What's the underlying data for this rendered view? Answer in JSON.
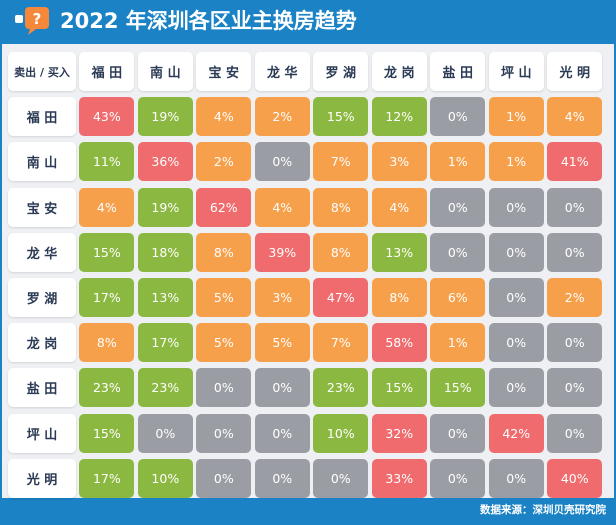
{
  "title": "2022 年深圳各区业主换房趋势",
  "logo_icon": "question-bubble-icon",
  "source": "数据来源：深圳贝壳研究院",
  "colors": {
    "background": "#1a82c5",
    "high": "#f06b6d",
    "mid": "#8bb840",
    "low": "#f7a04b",
    "zero": "#9a9ea4"
  },
  "chart_data": {
    "type": "heatmap",
    "corner_label": "卖出 / 买入",
    "columns": [
      "福 田",
      "南 山",
      "宝 安",
      "龙 华",
      "罗 湖",
      "龙 岗",
      "盐 田",
      "坪 山",
      "光 明"
    ],
    "rows": [
      {
        "label": "福 田",
        "values": [
          "43%",
          "19%",
          "4%",
          "2%",
          "15%",
          "12%",
          "0%",
          "1%",
          "4%"
        ]
      },
      {
        "label": "南 山",
        "values": [
          "11%",
          "36%",
          "2%",
          "0%",
          "7%",
          "3%",
          "1%",
          "1%",
          "41%"
        ]
      },
      {
        "label": "宝 安",
        "values": [
          "4%",
          "19%",
          "62%",
          "4%",
          "8%",
          "4%",
          "0%",
          "0%",
          "0%"
        ]
      },
      {
        "label": "龙 华",
        "values": [
          "15%",
          "18%",
          "8%",
          "39%",
          "8%",
          "13%",
          "0%",
          "0%",
          "0%"
        ]
      },
      {
        "label": "罗 湖",
        "values": [
          "17%",
          "13%",
          "5%",
          "3%",
          "47%",
          "8%",
          "6%",
          "0%",
          "2%"
        ]
      },
      {
        "label": "龙 岗",
        "values": [
          "8%",
          "17%",
          "5%",
          "5%",
          "7%",
          "58%",
          "1%",
          "0%",
          "0%"
        ]
      },
      {
        "label": "盐 田",
        "values": [
          "23%",
          "23%",
          "0%",
          "0%",
          "23%",
          "15%",
          "15%",
          "0%",
          "0%"
        ]
      },
      {
        "label": "坪 山",
        "values": [
          "15%",
          "0%",
          "0%",
          "0%",
          "10%",
          "32%",
          "0%",
          "42%",
          "0%"
        ]
      },
      {
        "label": "光 明",
        "values": [
          "17%",
          "10%",
          "0%",
          "0%",
          "0%",
          "33%",
          "0%",
          "0%",
          "40%"
        ]
      }
    ],
    "cell_categories": [
      [
        "high",
        "mid",
        "low",
        "low",
        "mid",
        "mid",
        "zero",
        "low",
        "low"
      ],
      [
        "mid",
        "high",
        "low",
        "zero",
        "low",
        "low",
        "low",
        "low",
        "high"
      ],
      [
        "low",
        "mid",
        "high",
        "low",
        "low",
        "low",
        "zero",
        "zero",
        "zero"
      ],
      [
        "mid",
        "mid",
        "low",
        "high",
        "low",
        "mid",
        "zero",
        "zero",
        "zero"
      ],
      [
        "mid",
        "mid",
        "low",
        "low",
        "high",
        "low",
        "low",
        "zero",
        "low"
      ],
      [
        "low",
        "mid",
        "low",
        "low",
        "low",
        "high",
        "low",
        "zero",
        "zero"
      ],
      [
        "mid",
        "mid",
        "zero",
        "zero",
        "mid",
        "mid",
        "mid",
        "zero",
        "zero"
      ],
      [
        "mid",
        "zero",
        "zero",
        "zero",
        "mid",
        "high",
        "zero",
        "high",
        "zero"
      ],
      [
        "mid",
        "mid",
        "zero",
        "zero",
        "zero",
        "high",
        "zero",
        "zero",
        "high"
      ]
    ]
  }
}
